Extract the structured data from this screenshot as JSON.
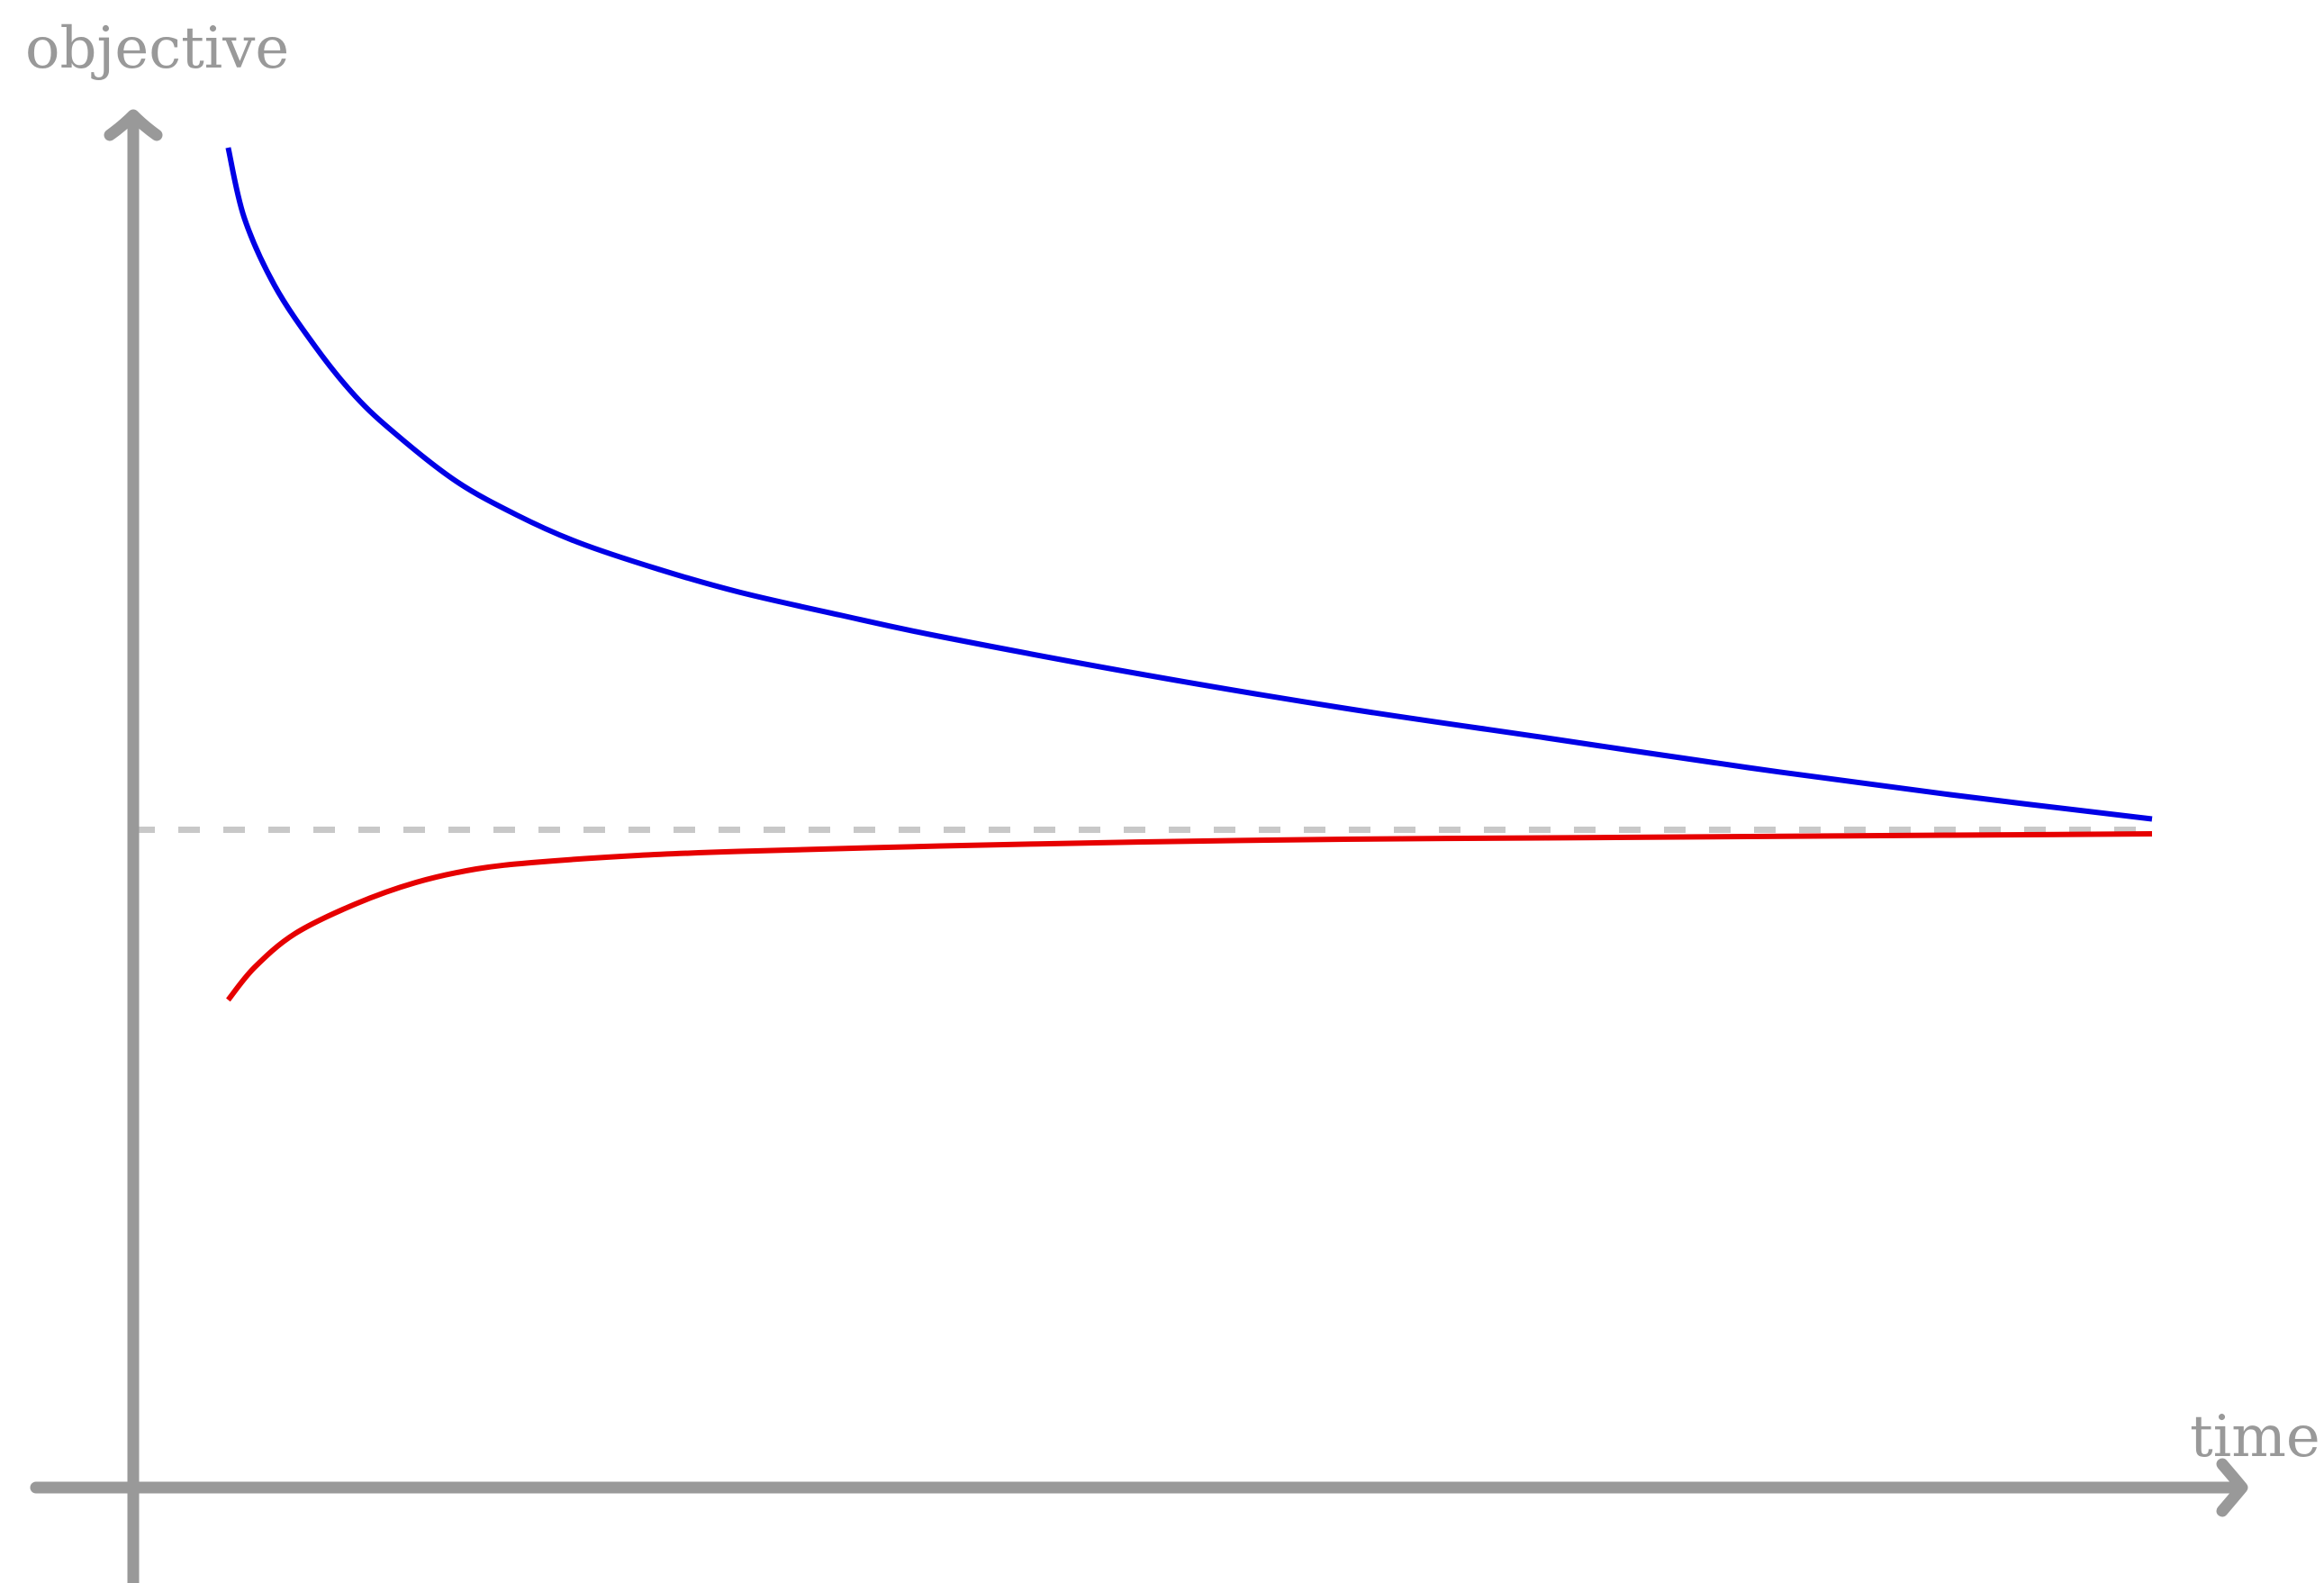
{
  "chart_data": {
    "type": "line",
    "title": "",
    "xlabel": "time",
    "ylabel": "objective",
    "xlim": [
      0,
      10
    ],
    "ylim": [
      0,
      10
    ],
    "grid": false,
    "legend": "none",
    "colors": {
      "axes": "#999999",
      "reference": "#c8c8c8",
      "upper": "#0000e6",
      "lower": "#e60000"
    },
    "reference_line": {
      "y": 4.87,
      "style": "dashed"
    },
    "series": [
      {
        "color": "#0000e6",
        "x": [
          0.47,
          0.55,
          0.7,
          0.9,
          1.1,
          1.3,
          1.6,
          1.9,
          2.2,
          2.6,
          3.0,
          3.5,
          4.0,
          5.0,
          6.0,
          7.0,
          8.0,
          9.0,
          10.0
        ],
        "y": [
          9.92,
          9.4,
          8.9,
          8.45,
          8.08,
          7.8,
          7.45,
          7.2,
          7.0,
          6.8,
          6.63,
          6.46,
          6.3,
          6.02,
          5.77,
          5.55,
          5.33,
          5.13,
          4.95
        ]
      },
      {
        "color": "#e60000",
        "x": [
          0.47,
          0.6,
          0.8,
          1.1,
          1.4,
          1.7,
          2.0,
          2.5,
          3.0,
          4.0,
          5.0,
          6.0,
          7.0,
          8.0,
          9.0,
          10.0
        ],
        "y": [
          3.61,
          3.85,
          4.1,
          4.32,
          4.48,
          4.58,
          4.63,
          4.68,
          4.71,
          4.75,
          4.78,
          4.8,
          4.81,
          4.82,
          4.83,
          4.84
        ]
      }
    ]
  }
}
